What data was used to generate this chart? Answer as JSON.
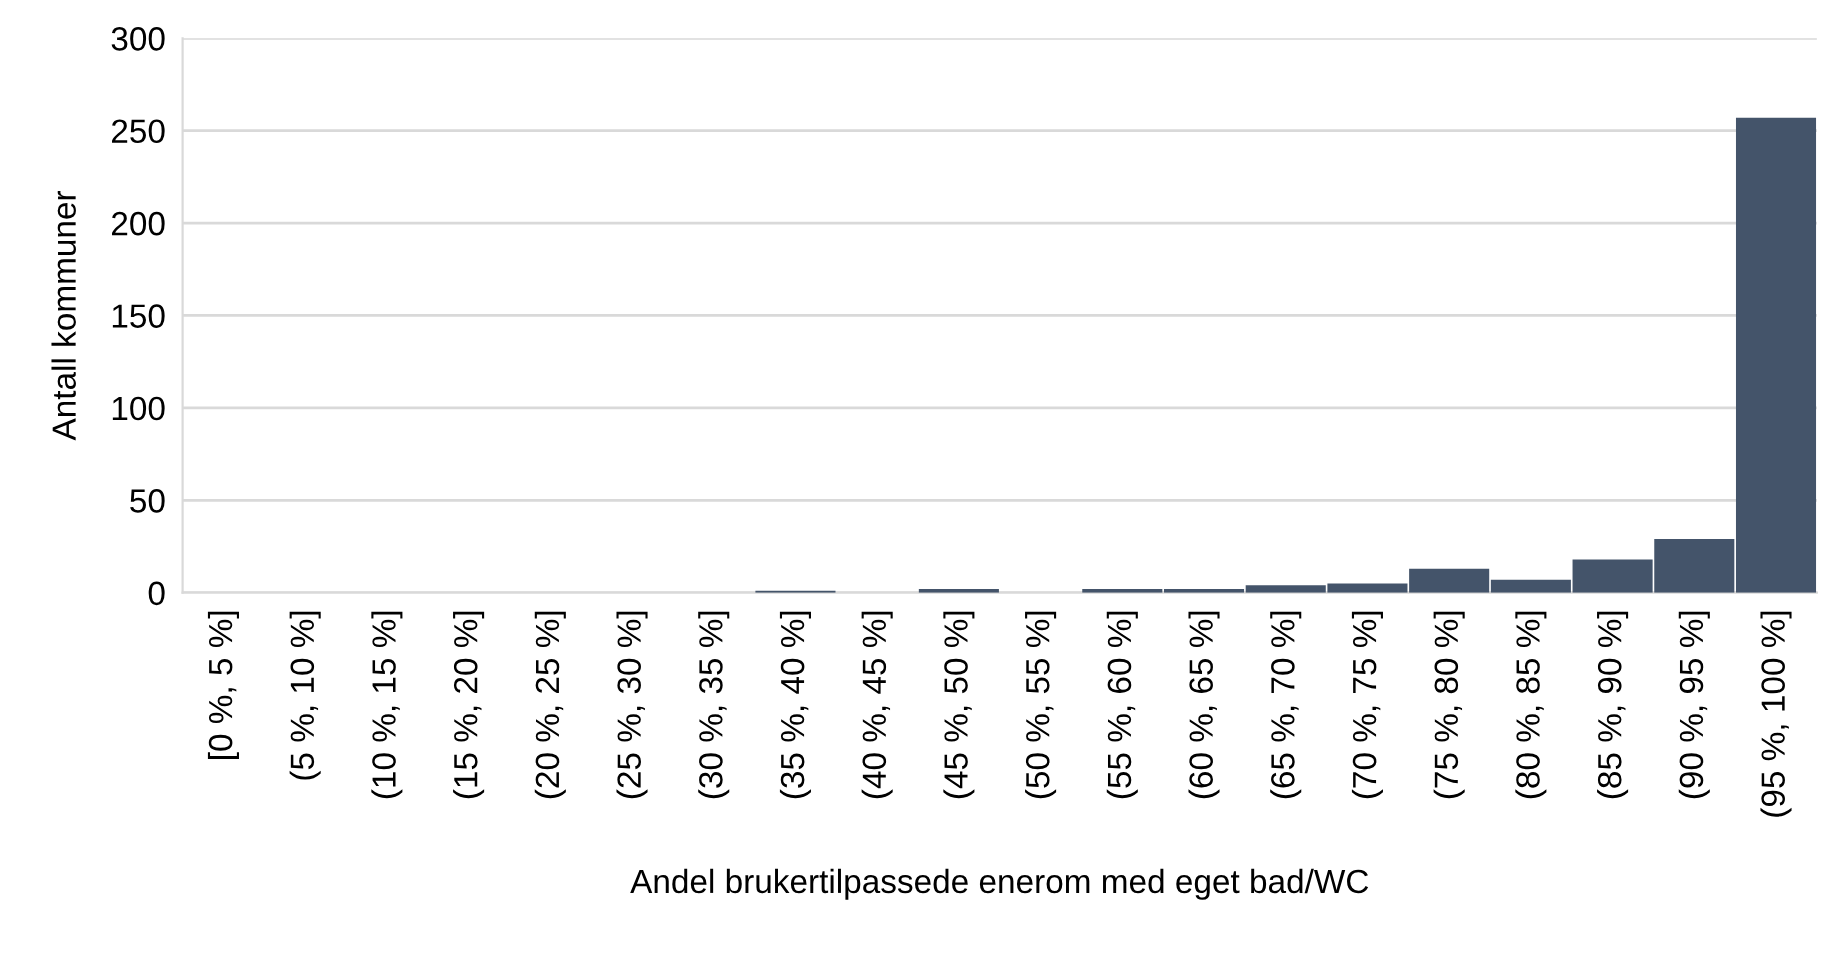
{
  "chart_data": {
    "type": "bar",
    "xlabel": "Andel brukertilpassede enerom med eget bad/WC",
    "ylabel": "Antall kommuner",
    "categories": [
      "[0 %, 5 %]",
      "(5 %, 10 %]",
      "(10 %, 15 %]",
      "(15 %, 20 %]",
      "(20 %, 25 %]",
      "(25 %, 30 %]",
      "(30 %, 35 %]",
      "(35 %, 40 %]",
      "(40 %, 45 %]",
      "(45 %, 50 %]",
      "(50 %, 55 %]",
      "(55 %, 60 %]",
      "(60 %, 65 %]",
      "(65 %, 70 %]",
      "(70 %, 75 %]",
      "(75 %, 80 %]",
      "(80 %, 85 %]",
      "(85 %, 90 %]",
      "(90 %, 95 %]",
      "(95 %, 100 %]"
    ],
    "values": [
      0,
      0,
      0,
      0,
      0,
      0,
      0,
      1,
      0,
      2,
      0,
      2,
      2,
      4,
      5,
      13,
      7,
      18,
      29,
      257
    ],
    "color": "#44546a",
    "ylim": [
      0,
      300
    ],
    "yticks": [
      0,
      50,
      100,
      150,
      200,
      250,
      300
    ],
    "grid": "y"
  }
}
